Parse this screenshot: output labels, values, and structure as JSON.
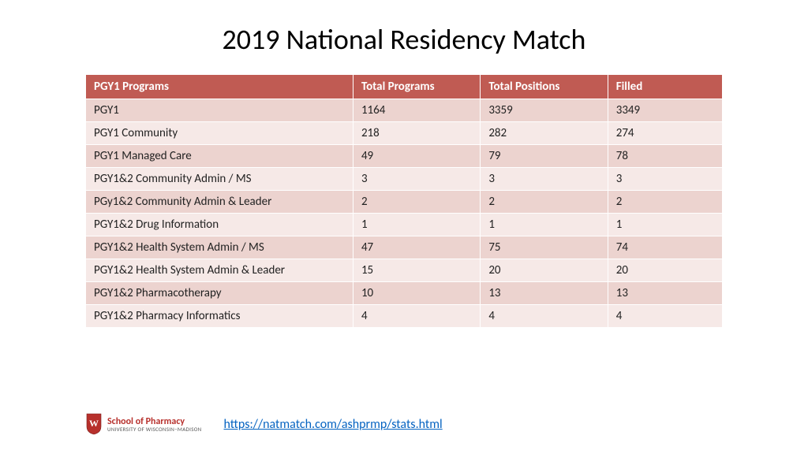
{
  "title": "2019 National Residency Match",
  "table": {
    "type": "table",
    "header_bg": "#c05b53",
    "header_color": "#ffffff",
    "row_odd_bg": "#ecd3cf",
    "row_even_bg": "#f6e9e7",
    "text_color": "#222222",
    "font_size": 15,
    "columns": [
      {
        "label": "PGY1 Programs",
        "width_pct": 42
      },
      {
        "label": "Total Programs",
        "width_pct": 20
      },
      {
        "label": "Total Positions",
        "width_pct": 20
      },
      {
        "label": "Filled",
        "width_pct": 18
      }
    ],
    "rows": [
      [
        "PGY1",
        "1164",
        "3359",
        "3349"
      ],
      [
        "PGY1 Community",
        "218",
        "282",
        "274"
      ],
      [
        "PGY1 Managed Care",
        "49",
        "79",
        "78"
      ],
      [
        "PGY1&2 Community Admin / MS",
        "3",
        "3",
        "3"
      ],
      [
        "PGy1&2 Community Admin & Leader",
        "2",
        "2",
        "2"
      ],
      [
        "PGY1&2 Drug Information",
        "1",
        "1",
        "1"
      ],
      [
        "PGY1&2 Health System Admin / MS",
        "47",
        "75",
        "74"
      ],
      [
        "PGY1&2 Health System Admin & Leader",
        "15",
        "20",
        "20"
      ],
      [
        "PGY1&2 Pharmacotherapy",
        "10",
        "13",
        "13"
      ],
      [
        "PGY1&2 Pharmacy Informatics",
        "4",
        "4",
        "4"
      ]
    ]
  },
  "footer": {
    "logo_main": "School of Pharmacy",
    "logo_sub": "UNIVERSITY OF WISCONSIN–MADISON",
    "crest_letter": "W",
    "crest_fill": "#b7302c",
    "link_text": "https://natmatch.com/ashprmp/stats.html",
    "link_color": "#0563c1"
  }
}
